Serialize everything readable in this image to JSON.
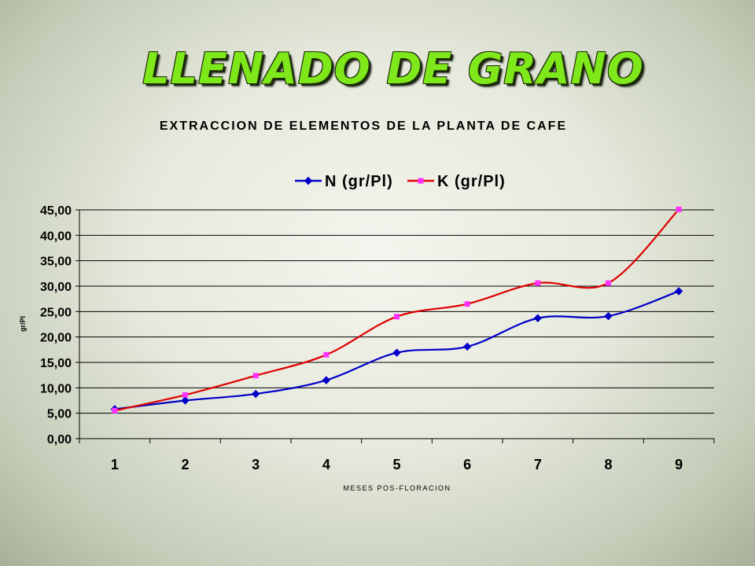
{
  "slide": {
    "title": "LLENADO DE GRANO"
  },
  "chart_data": {
    "type": "line",
    "title": "EXTRACCION DE ELEMENTOS DE LA PLANTA DE CAFE",
    "xlabel": "MESES POS-FLORACION",
    "ylabel": "gr/Pl",
    "categories": [
      "1",
      "2",
      "3",
      "4",
      "5",
      "6",
      "7",
      "8",
      "9"
    ],
    "ylim": [
      0,
      45
    ],
    "yticks": [
      "0,00",
      "5,00",
      "10,00",
      "15,00",
      "20,00",
      "25,00",
      "30,00",
      "35,00",
      "40,00",
      "45,00"
    ],
    "grid": true,
    "legend_position": "top",
    "series": [
      {
        "name": "N (gr/Pl)",
        "color": "#0000c8",
        "marker": "diamond",
        "values": [
          5.8,
          7.5,
          8.8,
          11.5,
          16.9,
          18.1,
          23.7,
          24.1,
          29.0
        ]
      },
      {
        "name": "K (gr/Pl)",
        "color": "#e00000",
        "marker_color": "#ff33ff",
        "marker": "square",
        "values": [
          5.5,
          8.6,
          12.4,
          16.5,
          24.0,
          26.5,
          30.6,
          30.6,
          45.1
        ]
      }
    ]
  }
}
